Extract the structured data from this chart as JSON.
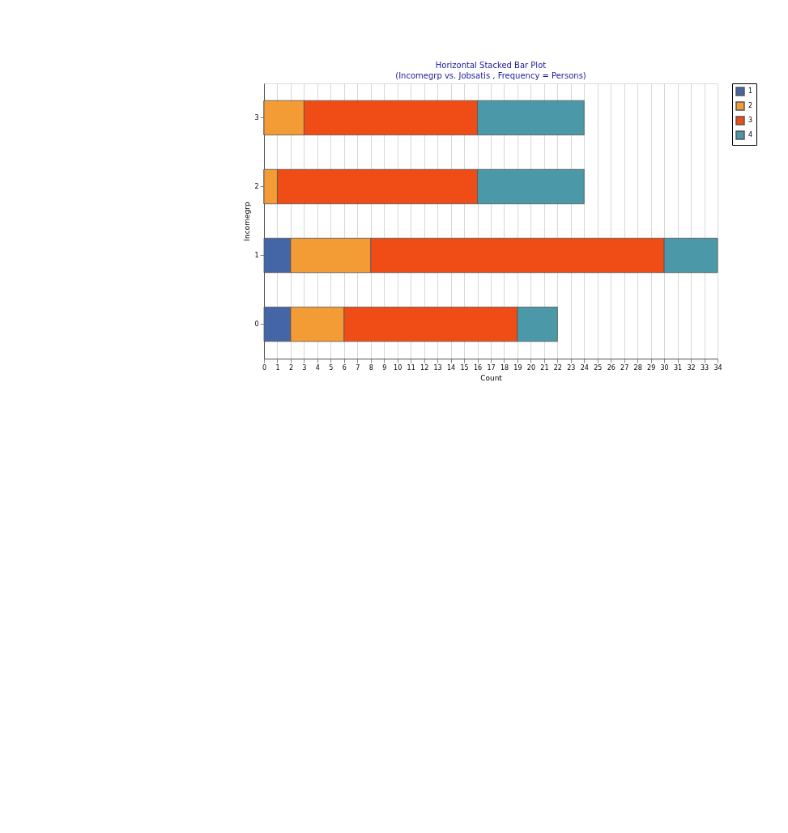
{
  "chart_data": {
    "type": "bar",
    "orientation": "horizontal",
    "stacked": true,
    "title": "Horizontal Stacked Bar Plot",
    "subtitle": "(Incomegrp vs. Jobsatis , Frequency = Persons)",
    "xlabel": "Count",
    "ylabel": "Incomegrp",
    "categories": [
      "3",
      "2",
      "1",
      "0"
    ],
    "series": [
      {
        "name": "1",
        "color": "#4466a6",
        "values": [
          0,
          0,
          2,
          2
        ]
      },
      {
        "name": "2",
        "color": "#f39c35",
        "values": [
          3,
          1,
          6,
          4
        ]
      },
      {
        "name": "3",
        "color": "#f04c16",
        "values": [
          13,
          15,
          22,
          13
        ]
      },
      {
        "name": "4",
        "color": "#4b99a8",
        "values": [
          8,
          8,
          4,
          3
        ]
      }
    ],
    "xlim": [
      0,
      34
    ],
    "xticks": [
      0,
      1,
      2,
      3,
      4,
      5,
      6,
      7,
      8,
      9,
      10,
      11,
      12,
      13,
      14,
      15,
      16,
      17,
      18,
      19,
      20,
      21,
      22,
      23,
      24,
      25,
      26,
      27,
      28,
      29,
      30,
      31,
      32,
      33,
      34
    ],
    "grid": "x",
    "legend": "top right"
  }
}
